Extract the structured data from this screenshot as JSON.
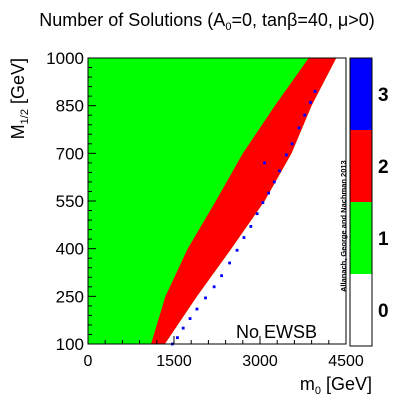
{
  "chart_data": {
    "type": "heatmap",
    "title": {
      "prefix": "Number of Solutions (A",
      "sub": "0",
      "suffix": "=0, tanβ=40, μ>0)"
    },
    "xlabel": {
      "main": "m",
      "sub": "0",
      "rest": " [GeV]"
    },
    "ylabel": {
      "main": "M",
      "sub": "1/2",
      "rest": " [GeV]"
    },
    "xlim": [
      0,
      4500
    ],
    "ylim": [
      100,
      1000
    ],
    "x_ticks": [
      "0",
      "1500",
      "3000",
      "4500"
    ],
    "x_tick_values": [
      0,
      1500,
      3000,
      4500
    ],
    "y_ticks": [
      "100",
      "250",
      "400",
      "550",
      "700",
      "850",
      "1000"
    ],
    "y_tick_values": [
      100,
      250,
      400,
      550,
      700,
      850,
      1000
    ],
    "colorbar": {
      "labels": [
        "0",
        "1",
        "2",
        "3"
      ],
      "colors": [
        "#ffffff",
        "#00ff00",
        "#ff0000",
        "#0000ff"
      ]
    },
    "regions": [
      {
        "solutions": 0,
        "label": "No EWSB",
        "boundary_m0": [
          [
            100,
            1340
          ],
          [
            250,
            1900
          ],
          [
            400,
            2500
          ],
          [
            550,
            3080
          ],
          [
            700,
            3550
          ],
          [
            850,
            3900
          ],
          [
            1000,
            4330
          ]
        ]
      },
      {
        "solutions": 2,
        "left_boundary_m0": [
          [
            100,
            1100
          ],
          [
            250,
            1350
          ],
          [
            400,
            1740
          ],
          [
            550,
            2230
          ],
          [
            700,
            2700
          ],
          [
            850,
            3260
          ],
          [
            1000,
            3850
          ]
        ]
      }
    ],
    "blue_points": [
      [
        1470,
        100
      ],
      [
        1560,
        120
      ],
      [
        1660,
        150
      ],
      [
        1780,
        180
      ],
      [
        1900,
        210
      ],
      [
        2050,
        245
      ],
      [
        2200,
        280
      ],
      [
        2330,
        315
      ],
      [
        2470,
        355
      ],
      [
        2600,
        395
      ],
      [
        2720,
        435
      ],
      [
        2840,
        470
      ],
      [
        2950,
        510
      ],
      [
        3050,
        545
      ],
      [
        3150,
        575
      ],
      [
        3250,
        610
      ],
      [
        3340,
        645
      ],
      [
        3460,
        695
      ],
      [
        3560,
        730
      ],
      [
        3680,
        780
      ],
      [
        3780,
        820
      ],
      [
        3880,
        860
      ],
      [
        3960,
        895
      ],
      [
        3080,
        670
      ]
    ],
    "red_points": [
      [
        3650,
        780
      ],
      [
        3700,
        820
      ],
      [
        3760,
        860
      ],
      [
        3820,
        895
      ],
      [
        3880,
        930
      ],
      [
        3950,
        955
      ],
      [
        4020,
        950
      ],
      [
        3800,
        930
      ],
      [
        3720,
        870
      ],
      [
        3610,
        830
      ]
    ],
    "annotation": "No EWSB",
    "credit": "Allanach, George and Nachman 2013"
  }
}
